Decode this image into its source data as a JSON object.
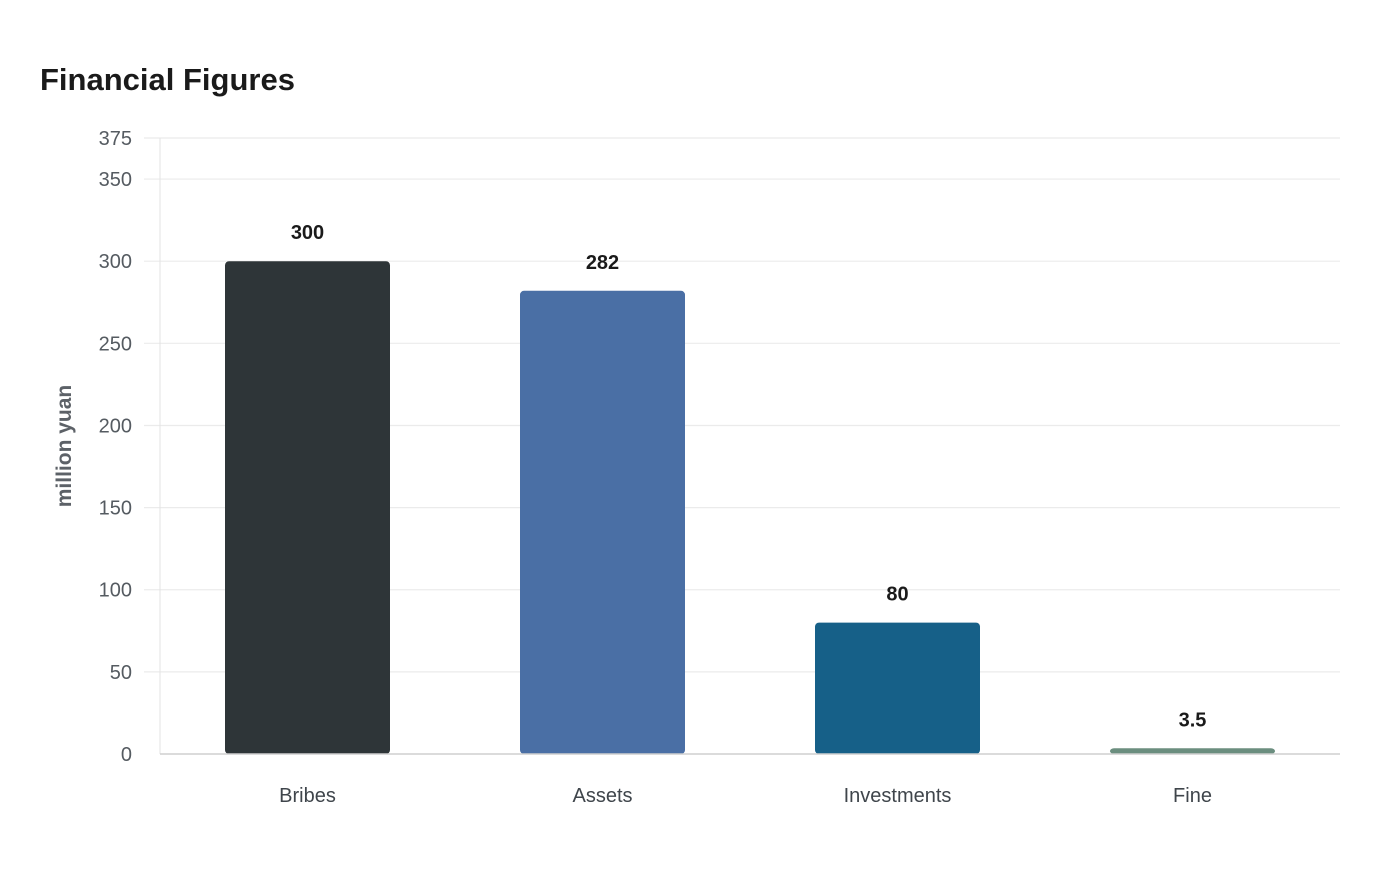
{
  "chart_data": {
    "type": "bar",
    "title": "Financial Figures",
    "xlabel": "",
    "ylabel": "million yuan",
    "categories": [
      "Bribes",
      "Assets",
      "Investments",
      "Fine"
    ],
    "values": [
      300,
      282,
      80,
      3.5
    ],
    "value_labels": [
      "300",
      "282",
      "80",
      "3.5"
    ],
    "colors": [
      "#2e3538",
      "#4a6fa5",
      "#166088",
      "#6b8e7f"
    ],
    "ylim": [
      0,
      375
    ],
    "yticks": [
      0,
      50,
      100,
      150,
      200,
      250,
      300,
      350,
      375
    ],
    "grid": true,
    "legend": "none"
  }
}
